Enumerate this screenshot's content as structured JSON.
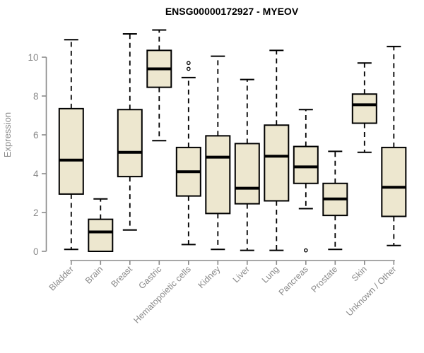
{
  "title": "ENSG00000172927 - MYEOV",
  "chart_data": {
    "type": "boxplot",
    "title": "ENSG00000172927 - MYEOV",
    "xlabel": "",
    "ylabel": "Expression",
    "ylim": [
      0,
      11.5
    ],
    "yticks": [
      0,
      2,
      4,
      6,
      8,
      10
    ],
    "grid": false,
    "legend": "none",
    "box_fill_color": "#EDE7CF",
    "box_line_color": "#000000",
    "axis_color": "#8a8a8a",
    "categories": [
      "Bladder",
      "Brain",
      "Breast",
      "Gastric",
      "Hematopoietic cells",
      "Kidney",
      "Liver",
      "Lung",
      "Pancreas",
      "Prostate",
      "Skin",
      "Unknown / Other"
    ],
    "boxes": [
      {
        "category": "Bladder",
        "low": 0.1,
        "q1": 2.95,
        "median": 4.7,
        "q3": 7.35,
        "high": 10.9,
        "outliers": []
      },
      {
        "category": "Brain",
        "low": 0.0,
        "q1": 0.0,
        "median": 1.0,
        "q3": 1.65,
        "high": 2.7,
        "outliers": []
      },
      {
        "category": "Breast",
        "low": 1.1,
        "q1": 3.85,
        "median": 5.1,
        "q3": 7.3,
        "high": 11.2,
        "outliers": []
      },
      {
        "category": "Gastric",
        "low": 5.7,
        "q1": 8.45,
        "median": 9.4,
        "q3": 10.35,
        "high": 11.4,
        "outliers": []
      },
      {
        "category": "Hematopoietic cells",
        "low": 0.35,
        "q1": 2.85,
        "median": 4.1,
        "q3": 5.35,
        "high": 8.95,
        "outliers": [
          9.7,
          9.4
        ]
      },
      {
        "category": "Kidney",
        "low": 0.1,
        "q1": 1.95,
        "median": 4.85,
        "q3": 5.95,
        "high": 10.05,
        "outliers": []
      },
      {
        "category": "Liver",
        "low": 0.05,
        "q1": 2.45,
        "median": 3.25,
        "q3": 5.55,
        "high": 8.85,
        "outliers": []
      },
      {
        "category": "Lung",
        "low": 0.05,
        "q1": 2.6,
        "median": 4.9,
        "q3": 6.5,
        "high": 10.35,
        "outliers": []
      },
      {
        "category": "Pancreas",
        "low": 2.2,
        "q1": 3.5,
        "median": 4.35,
        "q3": 5.4,
        "high": 7.3,
        "outliers": [
          0.05
        ]
      },
      {
        "category": "Prostate",
        "low": 0.1,
        "q1": 1.85,
        "median": 2.7,
        "q3": 3.5,
        "high": 5.15,
        "outliers": []
      },
      {
        "category": "Skin",
        "low": 5.1,
        "q1": 6.6,
        "median": 7.55,
        "q3": 8.1,
        "high": 9.7,
        "outliers": []
      },
      {
        "category": "Unknown / Other",
        "low": 0.3,
        "q1": 1.8,
        "median": 3.3,
        "q3": 5.35,
        "high": 10.55,
        "outliers": []
      }
    ]
  }
}
